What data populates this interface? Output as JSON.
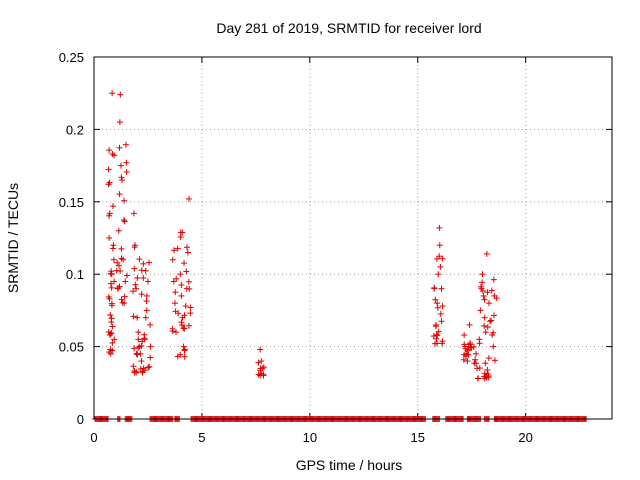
{
  "chart_data": {
    "type": "scatter",
    "title": "Day 281 of 2019, SRMTID for receiver lord",
    "xlabel": "GPS time / hours",
    "ylabel": "SRMTID / TECUs",
    "xlim": [
      0,
      24
    ],
    "ylim": [
      0,
      0.25
    ],
    "xticks": [
      0,
      5,
      10,
      15,
      20
    ],
    "yticks": [
      0,
      0.05,
      0.1,
      0.15,
      0.2,
      0.25
    ],
    "xtick_labels": [
      "0",
      "5",
      "10",
      "15",
      "20"
    ],
    "ytick_labels": [
      "0",
      "0.05",
      "0.1",
      "0.15",
      "0.2",
      "0.25"
    ],
    "grid": true,
    "marker": "+",
    "color": "#e00000",
    "zero_runs": [
      [
        0.05,
        0.65
      ],
      [
        1.1,
        1.2
      ],
      [
        1.45,
        1.75
      ],
      [
        2.6,
        3.65
      ],
      [
        3.75,
        3.95
      ],
      [
        4.5,
        15.35
      ],
      [
        15.7,
        16.0
      ],
      [
        16.3,
        17.1
      ],
      [
        17.3,
        17.9
      ],
      [
        18.1,
        18.3
      ],
      [
        18.55,
        22.8
      ]
    ],
    "clusters": [
      {
        "x_from": 0.65,
        "x_to": 0.95,
        "points": [
          [
            0.7,
            0.125
          ],
          [
            0.72,
            0.083
          ],
          [
            0.74,
            0.058
          ],
          [
            0.76,
            0.048
          ],
          [
            0.78,
            0.045
          ],
          [
            0.8,
            0.067
          ],
          [
            0.82,
            0.1
          ],
          [
            0.84,
            0.225
          ],
          [
            0.86,
            0.183
          ],
          [
            0.88,
            0.147
          ],
          [
            0.9,
            0.12
          ],
          [
            0.92,
            0.11
          ],
          [
            0.93,
            0.095
          ]
        ]
      },
      {
        "x_from": 1.05,
        "x_to": 1.55,
        "points": [
          [
            1.1,
            0.09
          ],
          [
            1.15,
            0.13
          ],
          [
            1.2,
            0.205
          ],
          [
            1.22,
            0.224
          ],
          [
            1.25,
            0.175
          ],
          [
            1.3,
            0.165
          ],
          [
            1.35,
            0.11
          ],
          [
            1.4,
            0.08
          ],
          [
            1.45,
            0.095
          ],
          [
            1.5,
            0.177
          ]
        ]
      },
      {
        "x_from": 1.8,
        "x_to": 2.7,
        "points": [
          [
            1.85,
            0.142
          ],
          [
            1.9,
            0.12
          ],
          [
            1.95,
            0.09
          ],
          [
            2.0,
            0.07
          ],
          [
            2.05,
            0.055
          ],
          [
            2.1,
            0.05
          ],
          [
            2.15,
            0.045
          ],
          [
            2.2,
            0.04
          ],
          [
            2.25,
            0.032
          ],
          [
            2.3,
            0.035
          ],
          [
            2.35,
            0.055
          ],
          [
            2.4,
            0.07
          ],
          [
            2.45,
            0.085
          ],
          [
            2.5,
            0.095
          ],
          [
            2.55,
            0.108
          ],
          [
            2.6,
            0.065
          ],
          [
            2.62,
            0.05
          ]
        ]
      },
      {
        "x_from": 3.6,
        "x_to": 4.5,
        "points": [
          [
            3.65,
            0.11
          ],
          [
            3.7,
            0.095
          ],
          [
            3.75,
            0.08
          ],
          [
            3.8,
            0.06
          ],
          [
            3.9,
            0.073
          ],
          [
            4.0,
            0.1
          ],
          [
            4.05,
            0.085
          ],
          [
            4.1,
            0.07
          ],
          [
            4.15,
            0.05
          ],
          [
            4.2,
            0.043
          ],
          [
            4.25,
            0.078
          ],
          [
            4.3,
            0.09
          ],
          [
            4.35,
            0.115
          ],
          [
            4.4,
            0.152
          ]
        ]
      },
      {
        "x_from": 7.6,
        "x_to": 7.9,
        "points": [
          [
            7.7,
            0.048
          ],
          [
            7.75,
            0.04
          ],
          [
            7.8,
            0.035
          ],
          [
            7.85,
            0.03
          ]
        ]
      },
      {
        "x_from": 15.7,
        "x_to": 16.2,
        "points": [
          [
            15.8,
            0.052
          ],
          [
            15.85,
            0.065
          ],
          [
            15.9,
            0.08
          ],
          [
            15.95,
            0.1
          ],
          [
            16.0,
            0.132
          ],
          [
            16.02,
            0.12
          ],
          [
            16.05,
            0.105
          ],
          [
            16.1,
            0.09
          ],
          [
            16.15,
            0.078
          ]
        ]
      },
      {
        "x_from": 17.1,
        "x_to": 17.5,
        "points": [
          [
            17.15,
            0.058
          ],
          [
            17.2,
            0.05
          ],
          [
            17.25,
            0.045
          ],
          [
            17.3,
            0.04
          ],
          [
            17.35,
            0.05
          ],
          [
            17.4,
            0.065
          ]
        ]
      },
      {
        "x_from": 17.6,
        "x_to": 18.7,
        "points": [
          [
            17.7,
            0.045
          ],
          [
            17.75,
            0.035
          ],
          [
            17.8,
            0.028
          ],
          [
            17.85,
            0.055
          ],
          [
            17.9,
            0.075
          ],
          [
            17.95,
            0.09
          ],
          [
            18.0,
            0.1
          ],
          [
            18.05,
            0.085
          ],
          [
            18.1,
            0.07
          ],
          [
            18.15,
            0.06
          ],
          [
            18.2,
            0.114
          ],
          [
            18.3,
            0.08
          ],
          [
            18.4,
            0.068
          ],
          [
            18.45,
            0.058
          ],
          [
            18.5,
            0.05
          ],
          [
            18.55,
            0.085
          ]
        ]
      }
    ]
  }
}
